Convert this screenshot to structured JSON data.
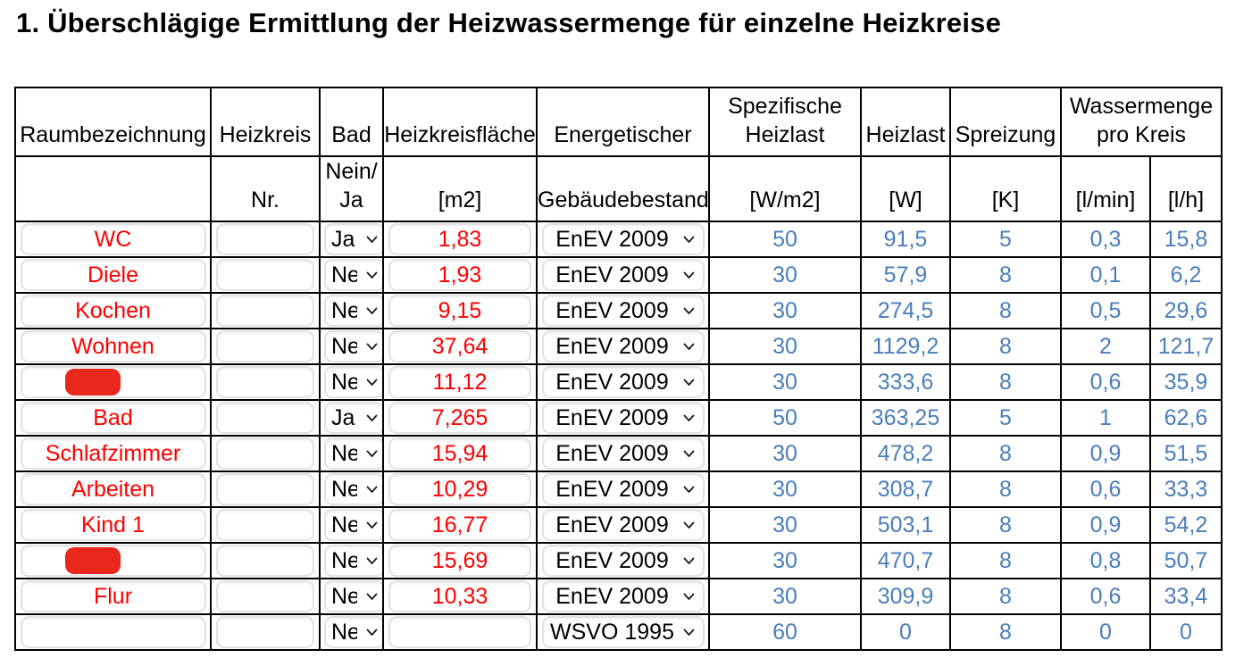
{
  "page_title": "1. Überschlägige Ermittlung der Heizwassermenge für einzelne Heizkreise",
  "colors": {
    "room_text": "#ff0000",
    "value_text": "#4a7ebb",
    "redaction": "#e8271d",
    "table_border": "#000000"
  },
  "icons": {
    "select_dropdown": "chevron-down-icon"
  },
  "table": {
    "header_row1": {
      "raum": "Raumbezeichnung",
      "heizkreis": "Heizkreis",
      "bad": "Bad",
      "flaeche": "Heizkreisfläche",
      "energetisch": "Energetischer",
      "spez_l1": "Spezifische",
      "spez_l2": "Heizlast",
      "heizlast": "Heizlast",
      "spreizung": "Spreizung",
      "wassermenge_l1": "Wassermenge",
      "wassermenge_l2": "pro Kreis"
    },
    "header_row2": {
      "nr": "Nr.",
      "bad_l1": "Nein/",
      "bad_l2": "Ja",
      "flaeche_unit": "[m2]",
      "energetisch": "Gebäudebestand",
      "spez_unit": "[W/m2]",
      "heizlast_unit": "[W]",
      "spreizung_unit": "[K]",
      "lmin_unit": "[l/min]",
      "lh_unit": "[l/h]"
    },
    "rows": [
      {
        "room": "WC",
        "redacted": false,
        "nr": "",
        "bad": "Ja",
        "flaeche": "1,83",
        "energie": "EnEV 2009",
        "wpm2": "50",
        "w": "91,5",
        "k": "5",
        "lmin": "0,3",
        "lh": "15,8"
      },
      {
        "room": "Diele",
        "redacted": false,
        "nr": "",
        "bad": "Nein",
        "flaeche": "1,93",
        "energie": "EnEV 2009",
        "wpm2": "30",
        "w": "57,9",
        "k": "8",
        "lmin": "0,1",
        "lh": "6,2"
      },
      {
        "room": "Kochen",
        "redacted": false,
        "nr": "",
        "bad": "Nein",
        "flaeche": "9,15",
        "energie": "EnEV 2009",
        "wpm2": "30",
        "w": "274,5",
        "k": "8",
        "lmin": "0,5",
        "lh": "29,6"
      },
      {
        "room": "Wohnen",
        "redacted": false,
        "nr": "",
        "bad": "Nein",
        "flaeche": "37,64",
        "energie": "EnEV 2009",
        "wpm2": "30",
        "w": "1129,2",
        "k": "8",
        "lmin": "2",
        "lh": "121,7"
      },
      {
        "room": "",
        "redacted": true,
        "nr": "",
        "bad": "Nein",
        "flaeche": "11,12",
        "energie": "EnEV 2009",
        "wpm2": "30",
        "w": "333,6",
        "k": "8",
        "lmin": "0,6",
        "lh": "35,9"
      },
      {
        "room": "Bad",
        "redacted": false,
        "nr": "",
        "bad": "Ja",
        "flaeche": "7,265",
        "energie": "EnEV 2009",
        "wpm2": "50",
        "w": "363,25",
        "k": "5",
        "lmin": "1",
        "lh": "62,6"
      },
      {
        "room": "Schlafzimmer",
        "redacted": false,
        "nr": "",
        "bad": "Nein",
        "flaeche": "15,94",
        "energie": "EnEV 2009",
        "wpm2": "30",
        "w": "478,2",
        "k": "8",
        "lmin": "0,9",
        "lh": "51,5"
      },
      {
        "room": "Arbeiten",
        "redacted": false,
        "nr": "",
        "bad": "Nein",
        "flaeche": "10,29",
        "energie": "EnEV 2009",
        "wpm2": "30",
        "w": "308,7",
        "k": "8",
        "lmin": "0,6",
        "lh": "33,3"
      },
      {
        "room": "Kind 1",
        "redacted": false,
        "nr": "",
        "bad": "Nein",
        "flaeche": "16,77",
        "energie": "EnEV 2009",
        "wpm2": "30",
        "w": "503,1",
        "k": "8",
        "lmin": "0,9",
        "lh": "54,2"
      },
      {
        "room": "",
        "redacted": true,
        "nr": "",
        "bad": "Nein",
        "flaeche": "15,69",
        "energie": "EnEV 2009",
        "wpm2": "30",
        "w": "470,7",
        "k": "8",
        "lmin": "0,8",
        "lh": "50,7"
      },
      {
        "room": "Flur",
        "redacted": false,
        "nr": "",
        "bad": "Nein",
        "flaeche": "10,33",
        "energie": "EnEV 2009",
        "wpm2": "30",
        "w": "309,9",
        "k": "8",
        "lmin": "0,6",
        "lh": "33,4"
      },
      {
        "room": "",
        "redacted": false,
        "nr": "",
        "bad": "Nein",
        "flaeche": "",
        "energie": "WSVO 1995",
        "wpm2": "60",
        "w": "0",
        "k": "8",
        "lmin": "0",
        "lh": "0"
      }
    ]
  }
}
